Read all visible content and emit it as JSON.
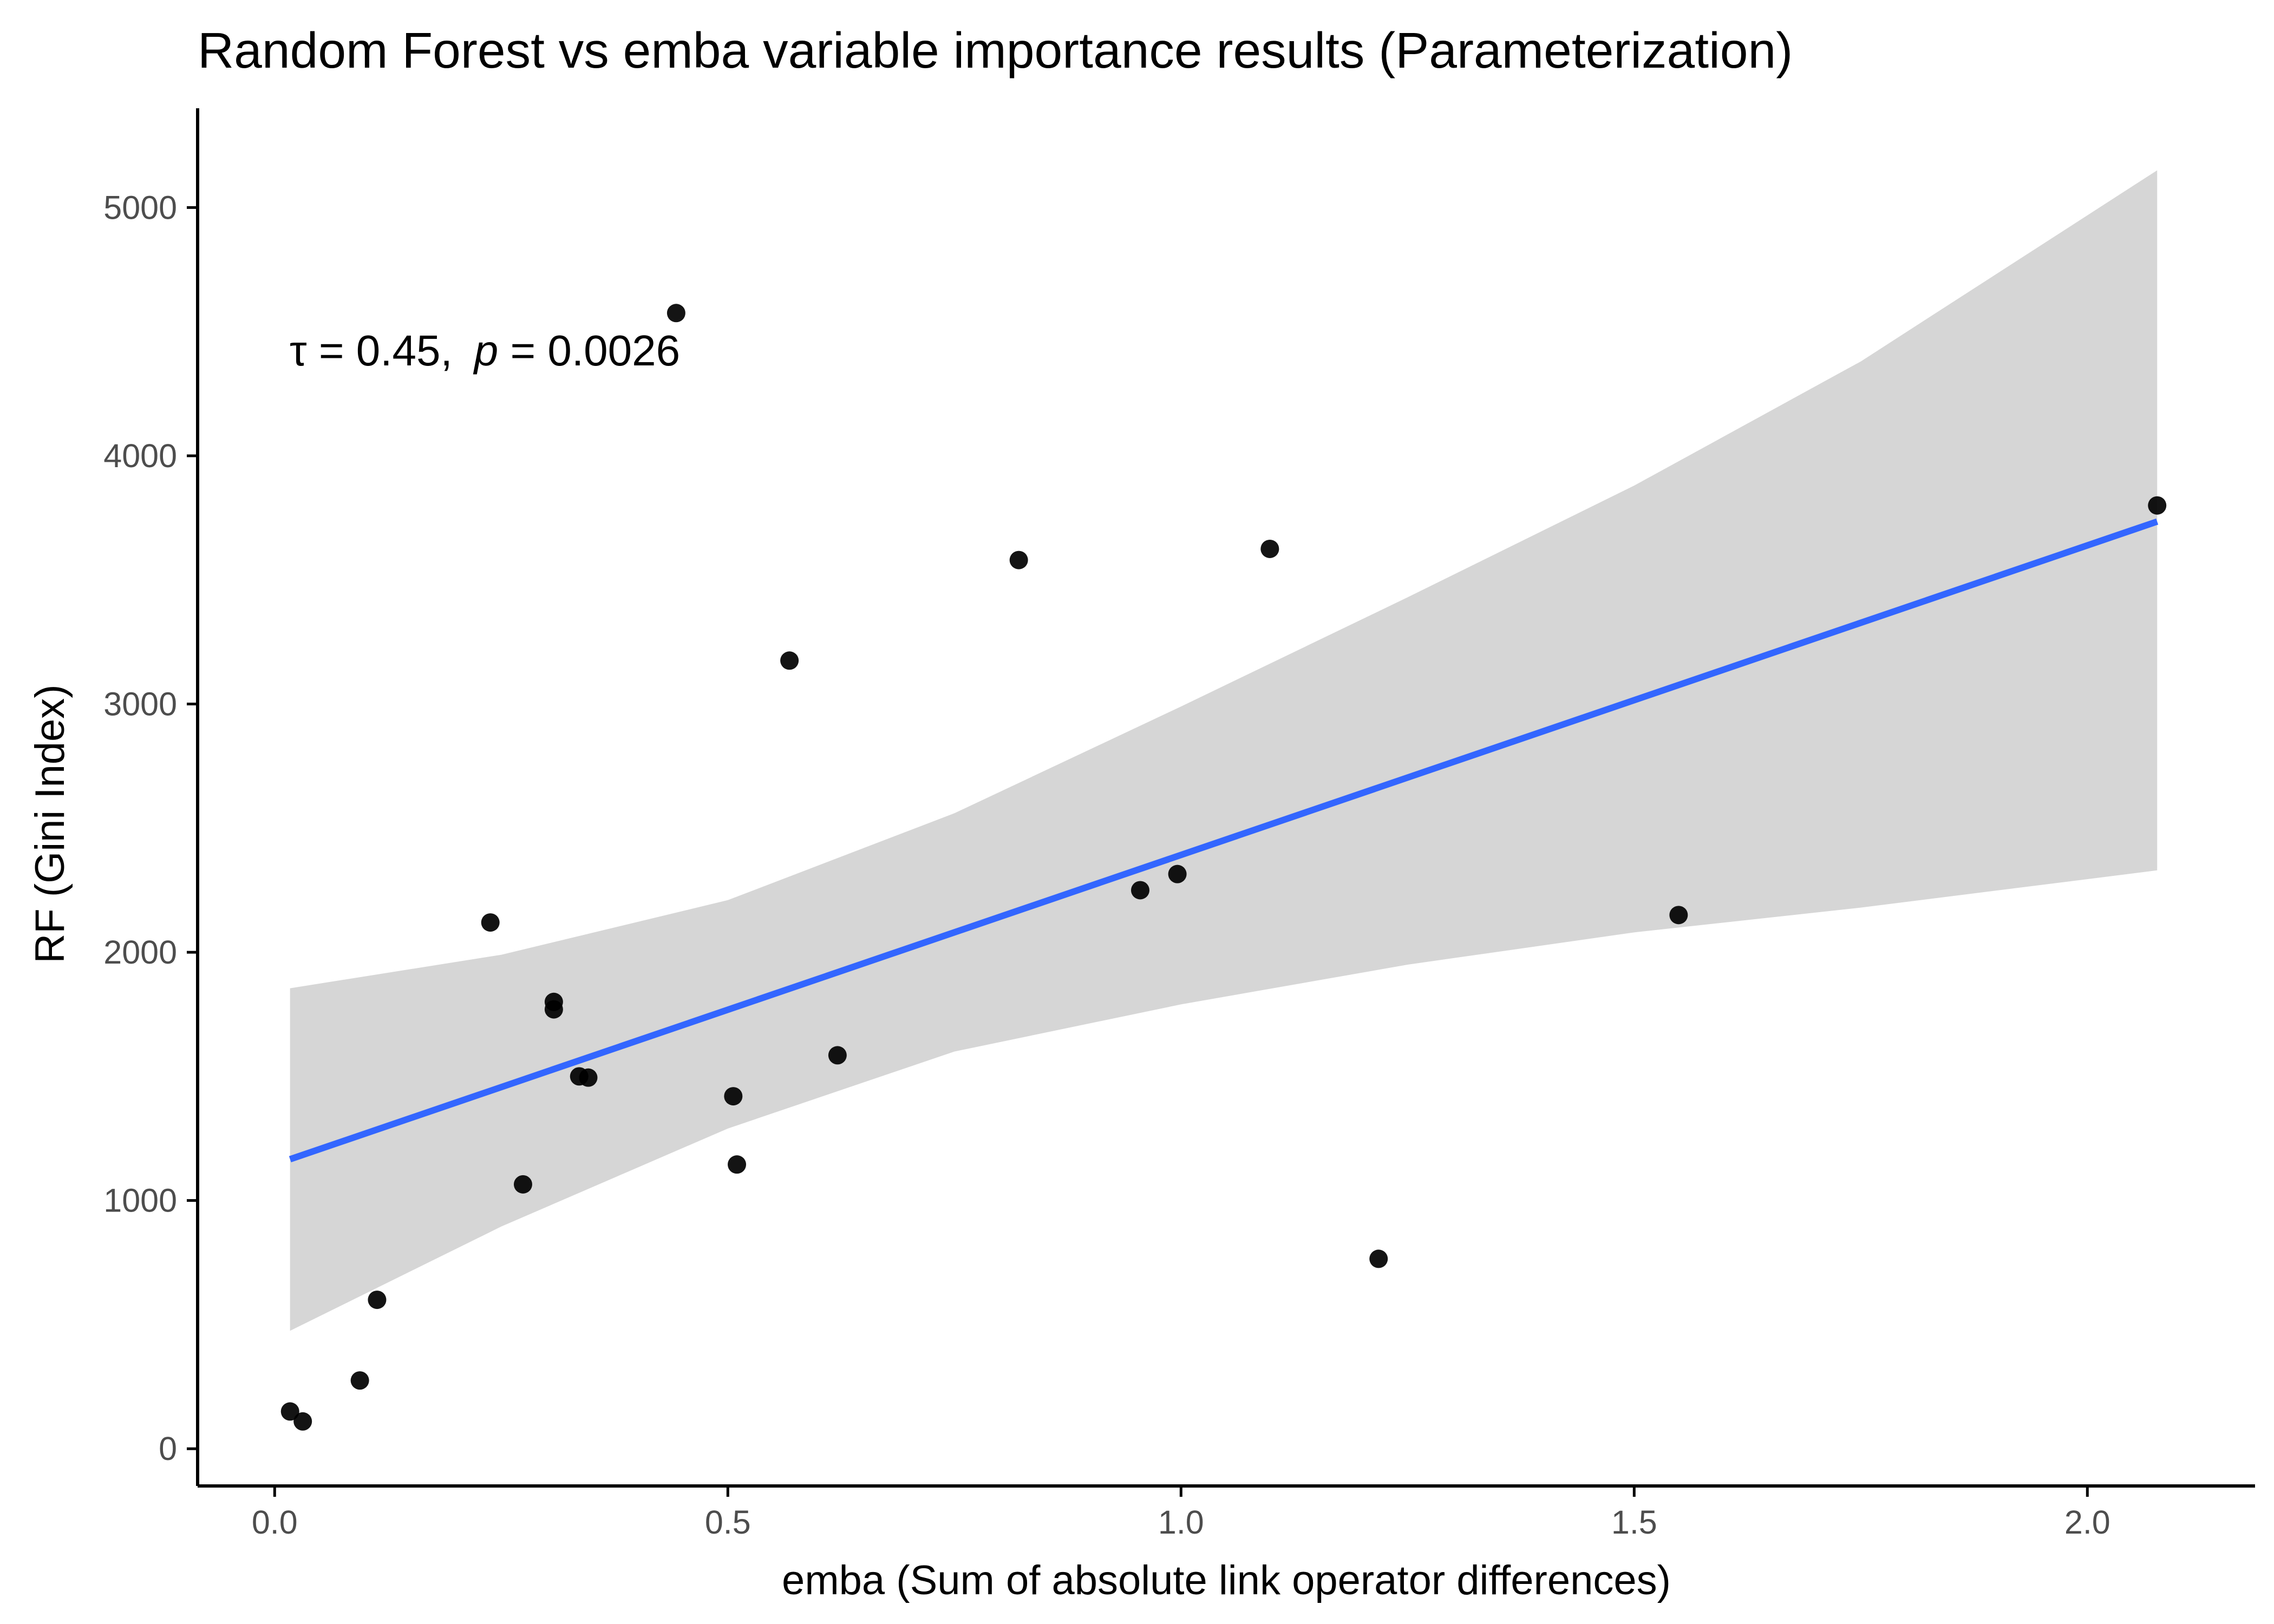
{
  "chart_data": {
    "type": "scatter",
    "title": "Random Forest vs emba variable importance results (Parameterization)",
    "xlabel": "emba (Sum of absolute link operator differences)",
    "ylabel": "RF (Gini Index)",
    "xlim": [
      -0.085,
      2.185
    ],
    "ylim": [
      -150,
      5400
    ],
    "x_ticks": [
      0.0,
      0.5,
      1.0,
      1.5,
      2.0
    ],
    "x_tick_labels": [
      "0.0",
      "0.5",
      "1.0",
      "1.5",
      "2.0"
    ],
    "y_ticks": [
      0,
      1000,
      2000,
      3000,
      4000,
      5000
    ],
    "y_tick_labels": [
      "0",
      "1000",
      "2000",
      "3000",
      "4000",
      "5000"
    ],
    "grid": false,
    "annotation": {
      "tau_symbol": "τ",
      "tau_text": " = 0.45,",
      "p_symbol": "p",
      "p_text": " = 0.0026"
    },
    "points": [
      {
        "x": 0.017,
        "y": 150
      },
      {
        "x": 0.031,
        "y": 110
      },
      {
        "x": 0.094,
        "y": 275
      },
      {
        "x": 0.113,
        "y": 600
      },
      {
        "x": 0.238,
        "y": 2120
      },
      {
        "x": 0.274,
        "y": 1065
      },
      {
        "x": 0.308,
        "y": 1800
      },
      {
        "x": 0.308,
        "y": 1770
      },
      {
        "x": 0.336,
        "y": 1500
      },
      {
        "x": 0.346,
        "y": 1495
      },
      {
        "x": 0.443,
        "y": 4575
      },
      {
        "x": 0.506,
        "y": 1420
      },
      {
        "x": 0.51,
        "y": 1145
      },
      {
        "x": 0.568,
        "y": 3175
      },
      {
        "x": 0.621,
        "y": 1585
      },
      {
        "x": 0.821,
        "y": 3580
      },
      {
        "x": 0.955,
        "y": 2250
      },
      {
        "x": 0.996,
        "y": 2315
      },
      {
        "x": 1.098,
        "y": 3625
      },
      {
        "x": 1.218,
        "y": 765
      },
      {
        "x": 1.549,
        "y": 2150
      },
      {
        "x": 2.077,
        "y": 3800
      }
    ],
    "fit": {
      "method": "linear",
      "x_range": [
        0.017,
        2.077
      ],
      "intercept": 1145,
      "slope": 1247
    },
    "confidence_band": [
      {
        "x": 0.017,
        "lower": 475,
        "upper": 1855
      },
      {
        "x": 0.25,
        "lower": 895,
        "upper": 1990
      },
      {
        "x": 0.5,
        "lower": 1290,
        "upper": 2210
      },
      {
        "x": 0.75,
        "lower": 1600,
        "upper": 2560
      },
      {
        "x": 1.0,
        "lower": 1790,
        "upper": 2990
      },
      {
        "x": 1.25,
        "lower": 1950,
        "upper": 3430
      },
      {
        "x": 1.5,
        "lower": 2080,
        "upper": 3880
      },
      {
        "x": 1.75,
        "lower": 2180,
        "upper": 4380
      },
      {
        "x": 2.077,
        "lower": 2330,
        "upper": 5150
      }
    ],
    "colors": {
      "points": "#000000",
      "fit_line": "#3366ff",
      "band": "#d6d6d6",
      "axis": "#000000",
      "tick_label": "#4d4d4d"
    }
  }
}
